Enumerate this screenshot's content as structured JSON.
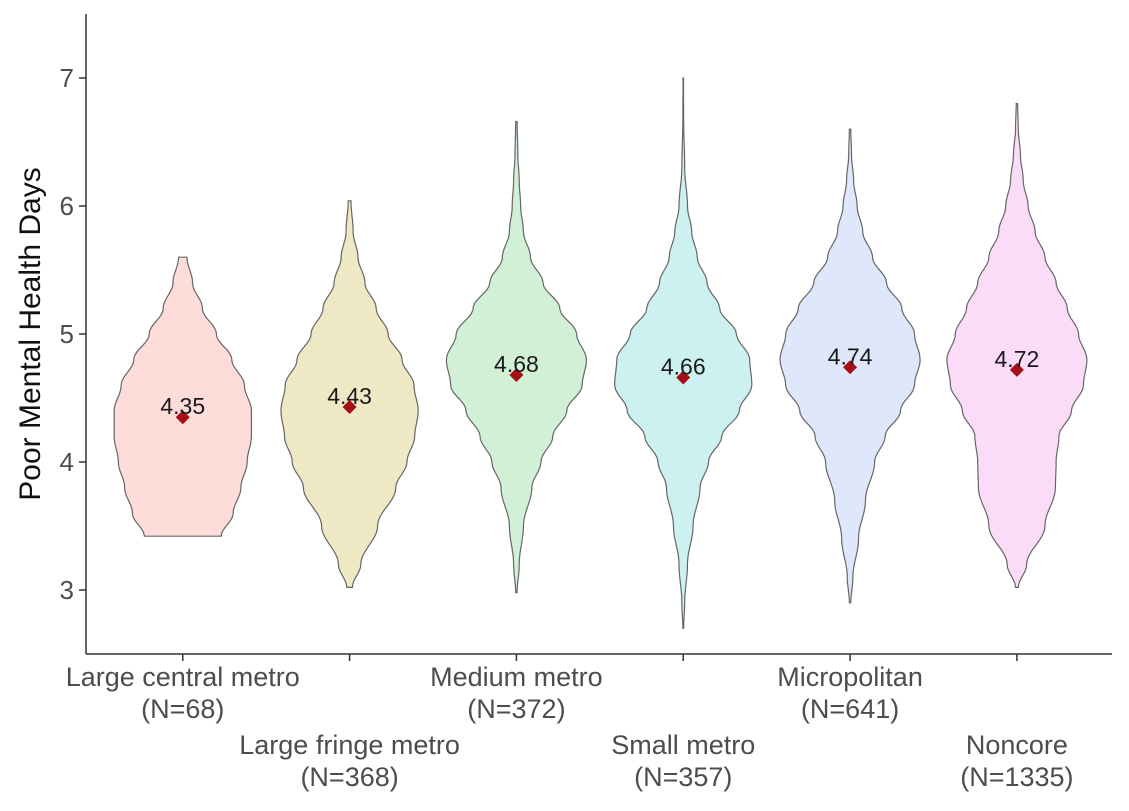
{
  "chart_data": {
    "type": "violin",
    "title": "",
    "xlabel": "",
    "ylabel": "Poor Mental Health Days",
    "ylim": [
      2.5,
      7.5
    ],
    "yticks": [
      "3",
      "4",
      "5",
      "6",
      "7"
    ],
    "grid": false,
    "legend": "none",
    "mean_marker_color": "#a50f15",
    "groups": [
      {
        "name": "Large central metro",
        "n_label": "(N=68)",
        "mean": 4.35,
        "mean_label": "4.35",
        "min": 3.42,
        "max": 5.6,
        "fill": "#fddcda",
        "tick_row": 0,
        "profile": [
          [
            3.42,
            0.55
          ],
          [
            3.6,
            0.72
          ],
          [
            3.8,
            0.83
          ],
          [
            4.0,
            0.92
          ],
          [
            4.2,
            0.98
          ],
          [
            4.4,
            0.98
          ],
          [
            4.6,
            0.88
          ],
          [
            4.8,
            0.7
          ],
          [
            5.0,
            0.48
          ],
          [
            5.2,
            0.28
          ],
          [
            5.4,
            0.14
          ],
          [
            5.6,
            0.06
          ]
        ]
      },
      {
        "name": "Large fringe metro",
        "n_label": "(N=368)",
        "mean": 4.43,
        "mean_label": "4.43",
        "min": 3.02,
        "max": 6.04,
        "fill": "#efe8c4",
        "tick_row": 1,
        "profile": [
          [
            3.02,
            0.04
          ],
          [
            3.2,
            0.16
          ],
          [
            3.5,
            0.4
          ],
          [
            3.8,
            0.66
          ],
          [
            4.0,
            0.82
          ],
          [
            4.2,
            0.93
          ],
          [
            4.4,
            0.98
          ],
          [
            4.6,
            0.92
          ],
          [
            4.8,
            0.75
          ],
          [
            5.0,
            0.55
          ],
          [
            5.2,
            0.38
          ],
          [
            5.4,
            0.22
          ],
          [
            5.6,
            0.12
          ],
          [
            5.8,
            0.05
          ],
          [
            6.04,
            0.02
          ]
        ]
      },
      {
        "name": "Medium metro",
        "n_label": "(N=372)",
        "mean": 4.68,
        "mean_label": "4.68",
        "min": 2.98,
        "max": 6.66,
        "fill": "#d1f0d6",
        "tick_row": 0,
        "profile": [
          [
            2.98,
            0.01
          ],
          [
            3.2,
            0.04
          ],
          [
            3.5,
            0.1
          ],
          [
            3.8,
            0.22
          ],
          [
            4.0,
            0.35
          ],
          [
            4.2,
            0.52
          ],
          [
            4.4,
            0.72
          ],
          [
            4.6,
            0.94
          ],
          [
            4.8,
            1.0
          ],
          [
            5.0,
            0.86
          ],
          [
            5.2,
            0.62
          ],
          [
            5.4,
            0.38
          ],
          [
            5.6,
            0.2
          ],
          [
            5.8,
            0.1
          ],
          [
            6.0,
            0.06
          ],
          [
            6.2,
            0.04
          ],
          [
            6.4,
            0.02
          ],
          [
            6.66,
            0.01
          ]
        ]
      },
      {
        "name": "Small metro",
        "n_label": "(N=357)",
        "mean": 4.66,
        "mean_label": "4.66",
        "min": 2.7,
        "max": 7.0,
        "fill": "#cdf1f0",
        "tick_row": 1,
        "profile": [
          [
            2.7,
            0.005
          ],
          [
            2.9,
            0.02
          ],
          [
            3.2,
            0.06
          ],
          [
            3.5,
            0.14
          ],
          [
            3.8,
            0.24
          ],
          [
            4.0,
            0.36
          ],
          [
            4.2,
            0.55
          ],
          [
            4.4,
            0.8
          ],
          [
            4.6,
            0.98
          ],
          [
            4.8,
            0.95
          ],
          [
            5.0,
            0.76
          ],
          [
            5.2,
            0.52
          ],
          [
            5.4,
            0.34
          ],
          [
            5.6,
            0.2
          ],
          [
            5.8,
            0.12
          ],
          [
            6.0,
            0.06
          ],
          [
            6.3,
            0.02
          ],
          [
            6.7,
            0.005
          ],
          [
            7.0,
            0.003
          ]
        ]
      },
      {
        "name": "Micropolitan",
        "n_label": "(N=641)",
        "mean": 4.74,
        "mean_label": "4.74",
        "min": 2.9,
        "max": 6.6,
        "fill": "#dfe8fb",
        "tick_row": 0,
        "profile": [
          [
            2.9,
            0.01
          ],
          [
            3.1,
            0.04
          ],
          [
            3.4,
            0.12
          ],
          [
            3.7,
            0.22
          ],
          [
            4.0,
            0.35
          ],
          [
            4.2,
            0.5
          ],
          [
            4.4,
            0.72
          ],
          [
            4.6,
            0.92
          ],
          [
            4.8,
            1.0
          ],
          [
            5.0,
            0.92
          ],
          [
            5.2,
            0.74
          ],
          [
            5.4,
            0.52
          ],
          [
            5.6,
            0.32
          ],
          [
            5.8,
            0.18
          ],
          [
            6.0,
            0.1
          ],
          [
            6.2,
            0.05
          ],
          [
            6.4,
            0.02
          ],
          [
            6.6,
            0.01
          ]
        ]
      },
      {
        "name": "Noncore",
        "n_label": "(N=1335)",
        "mean": 4.72,
        "mean_label": "4.72",
        "min": 3.02,
        "max": 6.8,
        "fill": "#fbdcf8",
        "tick_row": 1,
        "profile": [
          [
            3.02,
            0.02
          ],
          [
            3.2,
            0.14
          ],
          [
            3.5,
            0.4
          ],
          [
            3.8,
            0.55
          ],
          [
            4.0,
            0.56
          ],
          [
            4.2,
            0.6
          ],
          [
            4.4,
            0.78
          ],
          [
            4.6,
            0.95
          ],
          [
            4.8,
            1.0
          ],
          [
            5.0,
            0.88
          ],
          [
            5.2,
            0.72
          ],
          [
            5.4,
            0.56
          ],
          [
            5.6,
            0.4
          ],
          [
            5.8,
            0.26
          ],
          [
            6.0,
            0.16
          ],
          [
            6.2,
            0.09
          ],
          [
            6.4,
            0.05
          ],
          [
            6.6,
            0.02
          ],
          [
            6.8,
            0.01
          ]
        ]
      }
    ]
  }
}
